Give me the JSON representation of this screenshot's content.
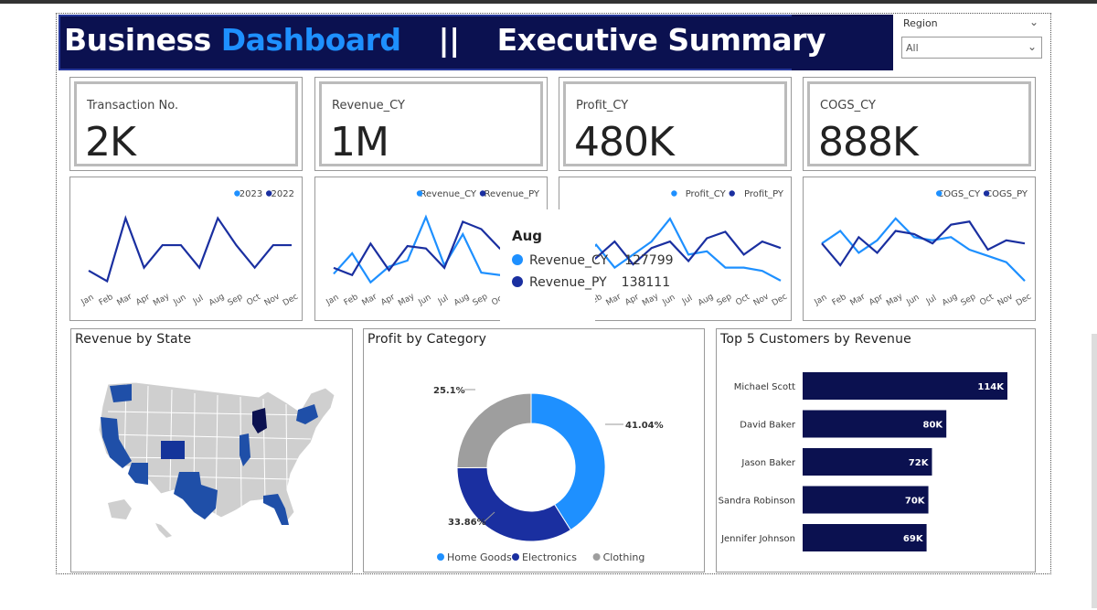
{
  "header": {
    "title_part1": "Business",
    "title_part2": "Dashboard",
    "separator": "||",
    "title_part3": "Executive Summary"
  },
  "slicer": {
    "label": "Region",
    "value": "All"
  },
  "kpis": [
    {
      "label": "Transaction No.",
      "value": "2K"
    },
    {
      "label": "Revenue_CY",
      "value": "1M"
    },
    {
      "label": "Profit_CY",
      "value": "480K"
    },
    {
      "label": "COGS_CY",
      "value": "888K"
    }
  ],
  "colors": {
    "current": "#1e90ff",
    "previous": "#1a2fa0",
    "navy": "#0b1150",
    "gray": "#9e9e9e",
    "map_fill": "#1f4fa8",
    "map_base": "#cfcfcf"
  },
  "months": [
    "Jan",
    "Feb",
    "Mar",
    "Apr",
    "May",
    "Jun",
    "Jul",
    "Aug",
    "Sep",
    "Oct",
    "Nov",
    "Dec"
  ],
  "line_charts": [
    {
      "legend": [
        "2023",
        "2022"
      ],
      "show_cy": false,
      "note": "single visible line"
    },
    {
      "legend": [
        "Revenue_CY",
        "Revenue_PY"
      ]
    },
    {
      "legend": [
        "Profit_CY",
        "Profit_PY"
      ]
    },
    {
      "legend": [
        "COGS_CY",
        "COGS_PY"
      ]
    }
  ],
  "tooltip": {
    "month": "Aug",
    "rows": [
      {
        "label": "Revenue_CY",
        "value": "127799"
      },
      {
        "label": "Revenue_PY",
        "value": "138111"
      }
    ]
  },
  "map_panel": {
    "title": "Revenue by State"
  },
  "donut_panel": {
    "title": "Profit by Category",
    "labels": [
      "41.04%",
      "33.86%",
      "25.1%"
    ],
    "legend": [
      "Home Goods",
      "Electronics",
      "Clothing"
    ]
  },
  "bar_panel": {
    "title": "Top 5 Customers by Revenue",
    "rows": [
      {
        "name": "Michael Scott",
        "label": "114K"
      },
      {
        "name": "David Baker",
        "label": "80K"
      },
      {
        "name": "Jason Baker",
        "label": "72K"
      },
      {
        "name": "Sandra Robinson",
        "label": "70K"
      },
      {
        "name": "Jennifer Johnson",
        "label": "69K"
      }
    ]
  },
  "chart_data": [
    {
      "type": "line",
      "x": [
        "Jan",
        "Feb",
        "Mar",
        "Apr",
        "May",
        "Jun",
        "Jul",
        "Aug",
        "Sep",
        "Oct",
        "Nov",
        "Dec"
      ],
      "series": [
        {
          "name": "2022",
          "values": [
            115,
            108,
            150,
            117,
            132,
            132,
            117,
            150,
            132,
            117,
            132,
            132
          ]
        }
      ],
      "legend": [
        "2023",
        "2022"
      ]
    },
    {
      "type": "line",
      "x": [
        "Jan",
        "Feb",
        "Mar",
        "Apr",
        "May",
        "Jun",
        "Jul",
        "Aug",
        "Sep",
        "Oct",
        "Nov",
        "Dec"
      ],
      "series": [
        {
          "name": "Revenue_CY",
          "values": [
            95,
            112,
            88,
            101,
            106,
            142,
            102,
            127.799,
            96,
            94,
            100,
            96
          ]
        },
        {
          "name": "Revenue_PY",
          "values": [
            100,
            94,
            120,
            98,
            118,
            116,
            100,
            138.111,
            132,
            116,
            120,
            118
          ]
        }
      ]
    },
    {
      "type": "line",
      "x": [
        "Jan",
        "Feb",
        "Mar",
        "Apr",
        "May",
        "Jun",
        "Jul",
        "Aug",
        "Sep",
        "Oct",
        "Nov",
        "Dec"
      ],
      "series": [
        {
          "name": "Profit_CY",
          "values": [
            100,
            110,
            96,
            104,
            112,
            126,
            104,
            106,
            96,
            96,
            94,
            88
          ]
        },
        {
          "name": "Profit_PY",
          "values": [
            94,
            102,
            112,
            98,
            108,
            112,
            100,
            114,
            118,
            104,
            112,
            108
          ]
        }
      ]
    },
    {
      "type": "line",
      "x": [
        "Jan",
        "Feb",
        "Mar",
        "Apr",
        "May",
        "Jun",
        "Jul",
        "Aug",
        "Sep",
        "Oct",
        "Nov",
        "Dec"
      ],
      "series": [
        {
          "name": "COGS_CY",
          "values": [
            110,
            118,
            104,
            112,
            126,
            114,
            112,
            114,
            106,
            102,
            98,
            86
          ]
        },
        {
          "name": "COGS_PY",
          "values": [
            110,
            96,
            114,
            104,
            118,
            116,
            110,
            122,
            124,
            106,
            112,
            110
          ]
        }
      ]
    },
    {
      "type": "pie",
      "title": "Profit by Category",
      "categories": [
        "Home Goods",
        "Electronics",
        "Clothing"
      ],
      "values": [
        41.04,
        33.86,
        25.1
      ]
    },
    {
      "type": "bar",
      "title": "Top 5 Customers by Revenue",
      "categories": [
        "Michael Scott",
        "David Baker",
        "Jason Baker",
        "Sandra Robinson",
        "Jennifer Johnson"
      ],
      "values": [
        114,
        80,
        72,
        70,
        69
      ],
      "unit": "K"
    }
  ]
}
